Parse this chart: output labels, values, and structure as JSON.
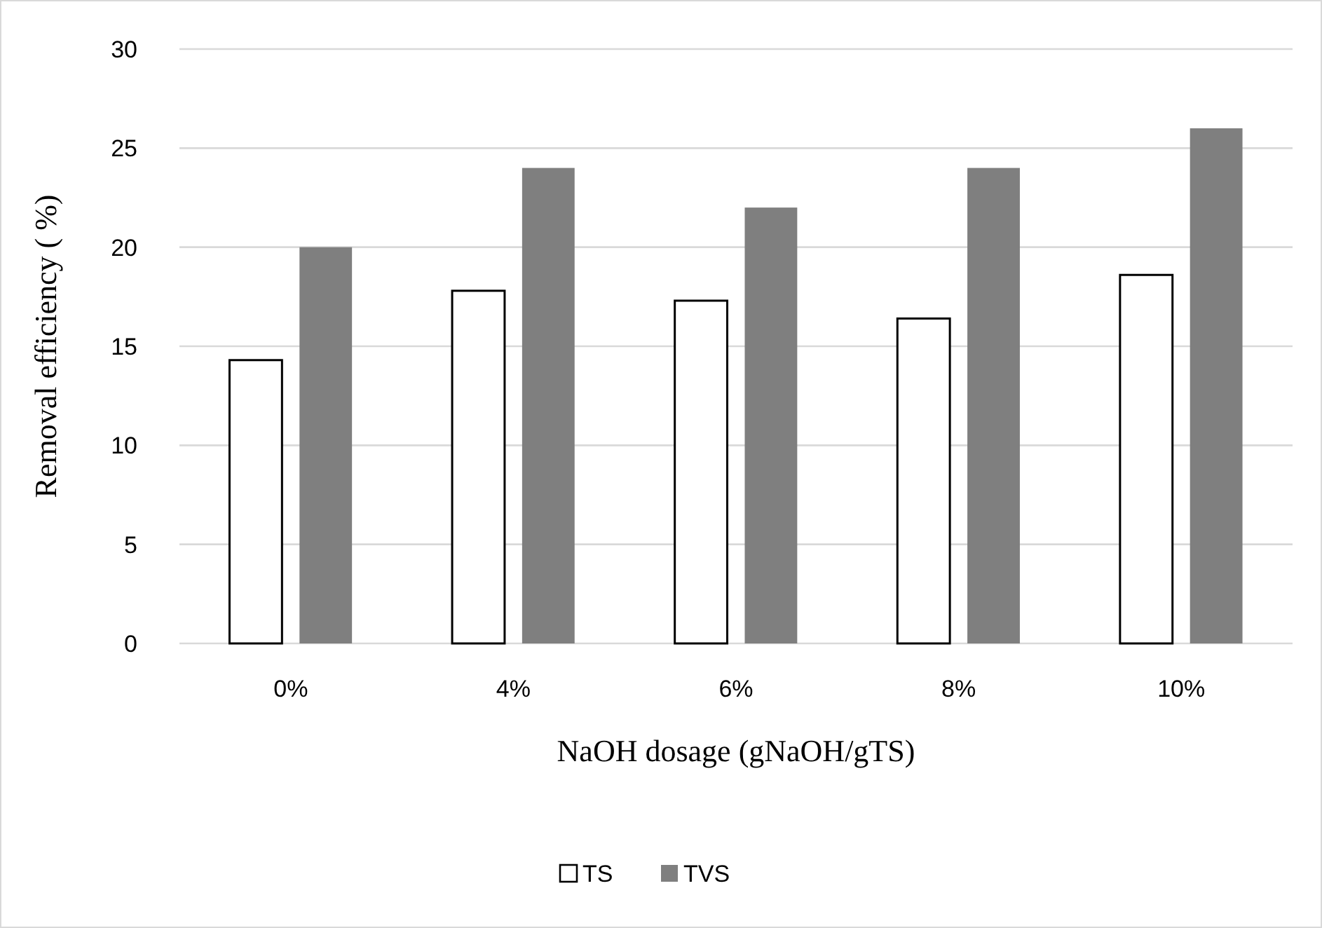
{
  "chart_data": {
    "type": "bar",
    "xlabel": "NaOH dosage (gNaOH/gTS)",
    "ylabel": "Removal efficiency ( %)",
    "categories": [
      "0%",
      "4%",
      "6%",
      "8%",
      "10%"
    ],
    "series": [
      {
        "name": "TS",
        "color": "#ffffff",
        "values": [
          14.3,
          17.8,
          17.3,
          16.4,
          18.6
        ]
      },
      {
        "name": "TVS",
        "color": "#7f7f7f",
        "values": [
          20,
          24,
          22,
          24,
          26
        ]
      }
    ],
    "ylim": [
      0,
      30
    ],
    "yticks": [
      0,
      5,
      10,
      15,
      20,
      25,
      30
    ],
    "grid": "y",
    "legend": "bottom"
  }
}
